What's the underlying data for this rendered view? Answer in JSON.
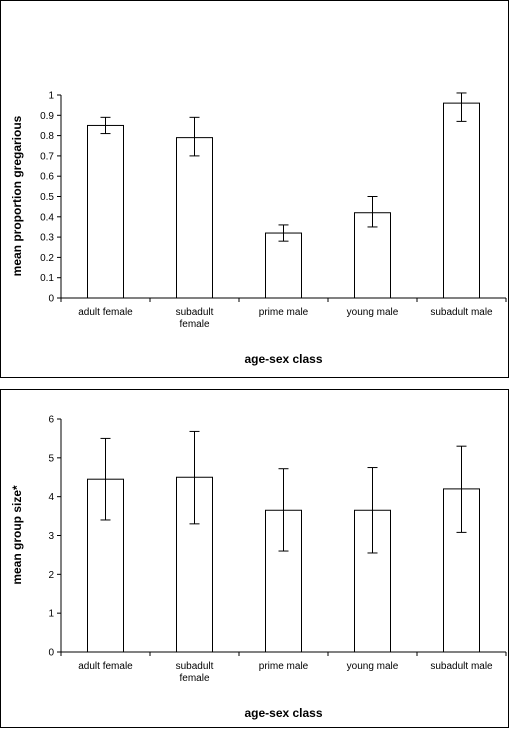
{
  "chart_data": [
    {
      "type": "bar",
      "categories": [
        "adult female",
        "subadult female",
        "prime male",
        "young male",
        "subadult male"
      ],
      "values": [
        0.85,
        0.79,
        0.32,
        0.42,
        0.96
      ],
      "error_bars": [
        [
          0.81,
          0.89
        ],
        [
          0.7,
          0.89
        ],
        [
          0.28,
          0.36
        ],
        [
          0.35,
          0.5
        ],
        [
          0.87,
          1.01
        ]
      ],
      "xlabel": "age-sex class",
      "ylabel": "mean proportion gregarious",
      "ylim": [
        0,
        1
      ],
      "yticks": [
        "0",
        "0.1",
        "0.2",
        "0.3",
        "0.4",
        "0.5",
        "0.6",
        "0.7",
        "0.8",
        "0.9",
        "1"
      ],
      "grid": false,
      "bar_color": "#ffffff"
    },
    {
      "type": "bar",
      "categories": [
        "adult female",
        "subadult female",
        "prime male",
        "young male",
        "subadult male"
      ],
      "values": [
        4.45,
        4.5,
        3.65,
        3.65,
        4.2
      ],
      "error_bars": [
        [
          3.4,
          5.5
        ],
        [
          3.3,
          5.68
        ],
        [
          2.6,
          4.72
        ],
        [
          2.55,
          4.75
        ],
        [
          3.08,
          5.3
        ]
      ],
      "xlabel": "age-sex class",
      "ylabel": "mean group size*",
      "ylim": [
        0,
        6
      ],
      "yticks": [
        "0",
        "1",
        "2",
        "3",
        "4",
        "5",
        "6"
      ],
      "grid": false,
      "bar_color": "#ffffff"
    }
  ]
}
